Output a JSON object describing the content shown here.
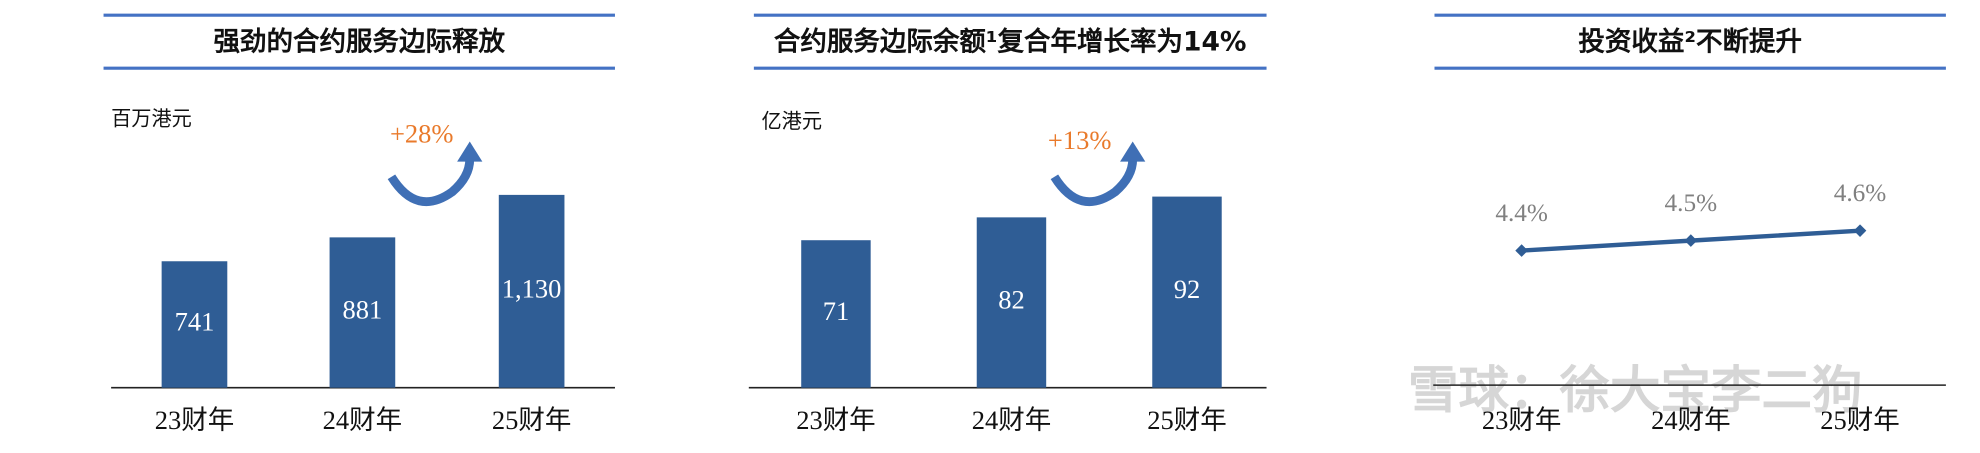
{
  "chart_data": [
    {
      "type": "bar",
      "title": "强劲的合约服务边际释放",
      "unit": "百万港元",
      "annotation": "+28%",
      "categories": [
        "23财年",
        "24财年",
        "25财年"
      ],
      "values": [
        741,
        881,
        1130
      ],
      "value_labels": [
        "741",
        "881",
        "1,130"
      ],
      "color": "#2f5d95",
      "ylim": [
        0,
        1680
      ]
    },
    {
      "type": "bar",
      "title": "合约服务边际余额¹复合年增长率为14%",
      "unit": "亿港元",
      "annotation": "+13%",
      "categories": [
        "23财年",
        "24财年",
        "25财年"
      ],
      "values": [
        71,
        82,
        92
      ],
      "value_labels": [
        "71",
        "82",
        "92"
      ],
      "color": "#2f5d95",
      "ylim": [
        0,
        138
      ]
    },
    {
      "type": "line",
      "title": "投资收益²不断提升",
      "categories": [
        "23财年",
        "24财年",
        "25财年"
      ],
      "values": [
        4.4,
        4.5,
        4.6
      ],
      "value_labels": [
        "4.4%",
        "4.5%",
        "4.6%"
      ],
      "color": "#2f5d95",
      "ylim": [
        3.05,
        5.9
      ]
    }
  ],
  "watermark": "雪球：徐大宝李二狗"
}
